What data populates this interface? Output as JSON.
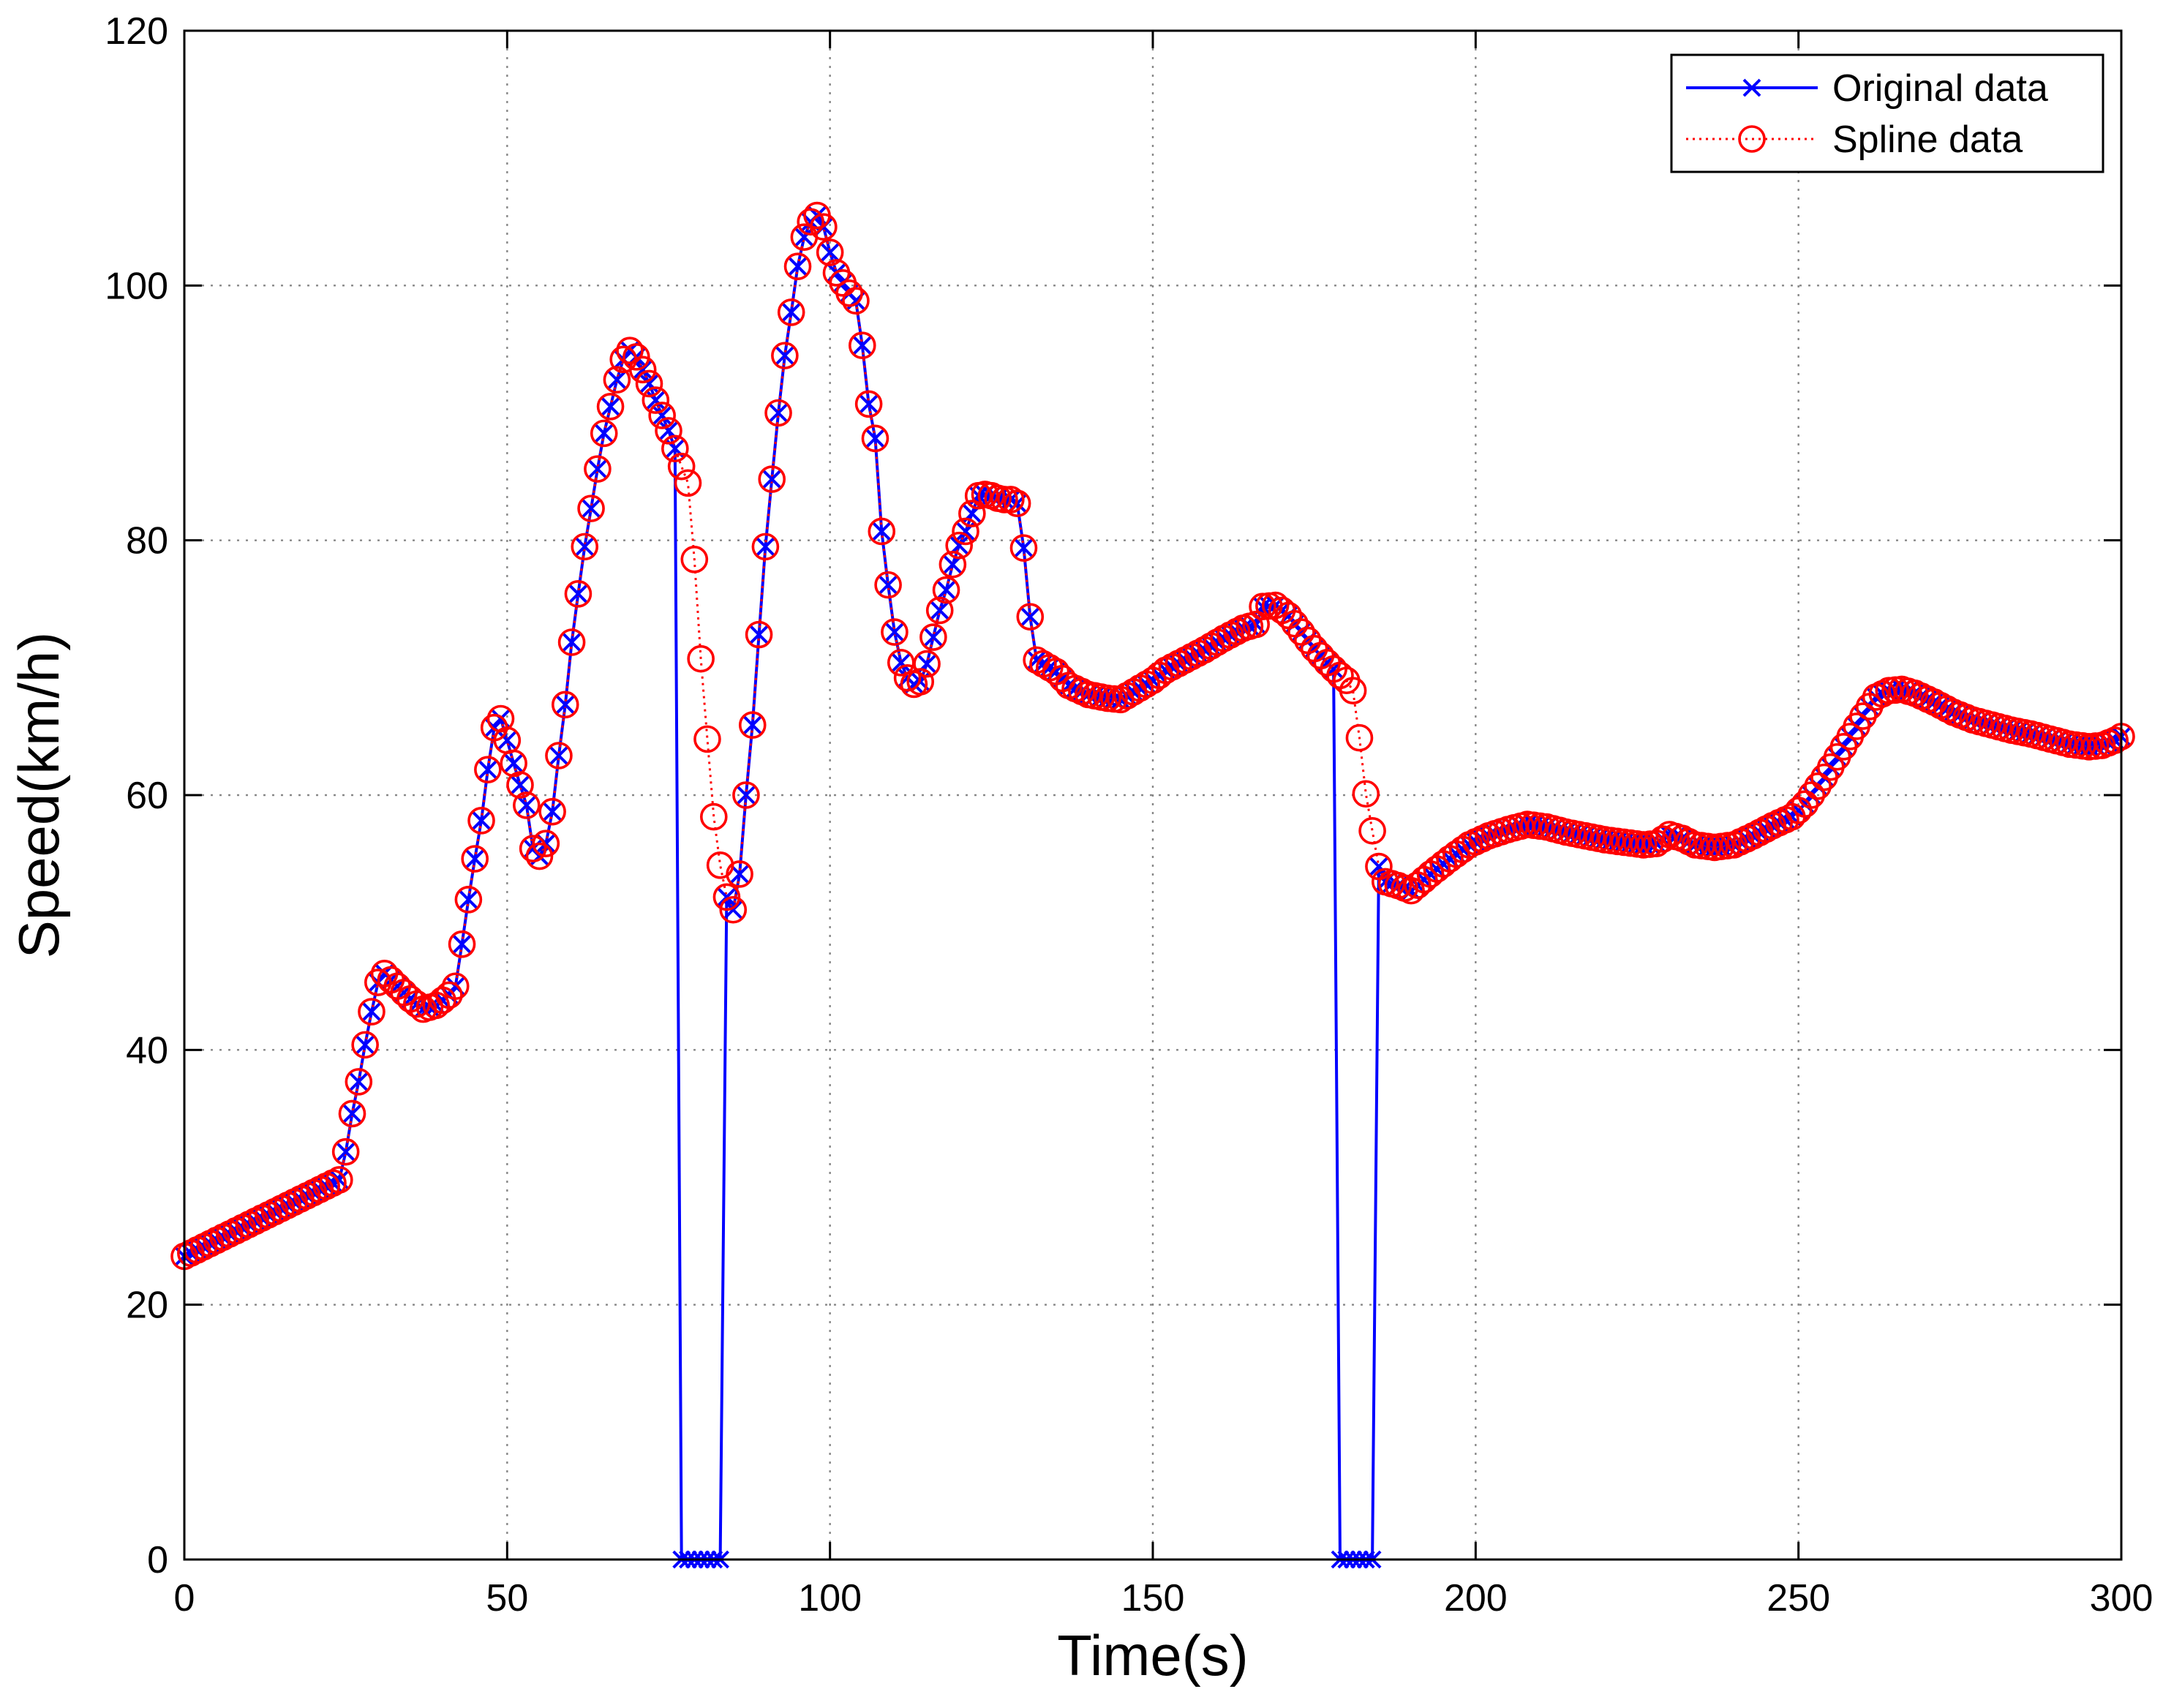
{
  "chart_data": {
    "type": "line",
    "title": "",
    "xlabel": "Time(s)",
    "ylabel": "Speed(km/h)",
    "xlim": [
      0,
      300
    ],
    "ylim": [
      0,
      120
    ],
    "x_ticks": [
      0,
      50,
      100,
      150,
      200,
      250,
      300
    ],
    "y_ticks": [
      0,
      20,
      40,
      60,
      80,
      100,
      120
    ],
    "grid": true,
    "legend_position": "top-right",
    "anchors": [
      [
        0,
        23.8
      ],
      [
        24,
        29.8
      ],
      [
        25,
        32
      ],
      [
        26,
        35
      ],
      [
        27,
        37.5
      ],
      [
        28,
        40.4
      ],
      [
        29,
        43
      ],
      [
        30,
        45.3
      ],
      [
        31,
        46
      ],
      [
        33,
        45
      ],
      [
        35,
        44
      ],
      [
        37,
        43.2
      ],
      [
        39,
        43.5
      ],
      [
        41,
        44.3
      ],
      [
        42,
        45
      ],
      [
        43,
        48.3
      ],
      [
        44,
        51.8
      ],
      [
        45,
        55
      ],
      [
        46,
        58
      ],
      [
        47,
        62
      ],
      [
        48,
        65.3
      ],
      [
        49,
        66
      ],
      [
        50,
        64.3
      ],
      [
        51,
        62.5
      ],
      [
        52,
        60.8
      ],
      [
        53,
        59.2
      ],
      [
        54,
        55.8
      ],
      [
        55,
        55.2
      ],
      [
        56,
        56.2
      ],
      [
        57,
        58.7
      ],
      [
        58,
        63.1
      ],
      [
        59,
        67.1
      ],
      [
        60,
        72
      ],
      [
        61,
        75.8
      ],
      [
        62,
        79.5
      ],
      [
        63,
        82.5
      ],
      [
        64,
        85.6
      ],
      [
        65,
        88.4
      ],
      [
        66,
        90.5
      ],
      [
        67,
        92.6
      ],
      [
        68,
        94.2
      ],
      [
        69,
        94.9
      ],
      [
        70,
        94.4
      ],
      [
        71,
        93.4
      ],
      [
        72,
        92.3
      ],
      [
        73,
        91
      ],
      [
        74,
        89.8
      ],
      [
        75,
        88.6
      ],
      [
        76,
        87.2
      ],
      [
        77,
        85.8
      ],
      [
        78,
        84.5
      ],
      [
        79,
        78.5
      ],
      [
        80,
        70.7
      ],
      [
        81,
        64.4
      ],
      [
        82,
        58.3
      ],
      [
        83,
        54.5
      ],
      [
        84,
        52
      ],
      [
        85,
        51
      ],
      [
        86,
        53.8
      ],
      [
        87,
        60
      ],
      [
        88,
        65.5
      ],
      [
        89,
        72.6
      ],
      [
        90,
        79.5
      ],
      [
        91,
        84.8
      ],
      [
        92,
        90
      ],
      [
        93,
        94.5
      ],
      [
        94,
        97.9
      ],
      [
        95,
        101.5
      ],
      [
        96,
        103.8
      ],
      [
        97,
        105
      ],
      [
        98,
        105.5
      ],
      [
        99,
        104.6
      ],
      [
        100,
        102.6
      ],
      [
        101,
        101
      ],
      [
        102,
        100.2
      ],
      [
        103,
        99.4
      ],
      [
        104,
        98.8
      ],
      [
        105,
        95.3
      ],
      [
        106,
        90.7
      ],
      [
        107,
        88
      ],
      [
        108,
        80.7
      ],
      [
        109,
        76.5
      ],
      [
        110,
        72.8
      ],
      [
        111,
        70.4
      ],
      [
        112,
        69.2
      ],
      [
        113,
        68.7
      ],
      [
        114,
        68.9
      ],
      [
        115,
        70.3
      ],
      [
        116,
        72.4
      ],
      [
        117,
        74.5
      ],
      [
        118,
        76.1
      ],
      [
        119,
        78.1
      ],
      [
        120,
        79.6
      ],
      [
        121,
        80.7
      ],
      [
        122,
        82.1
      ],
      [
        123,
        83.5
      ],
      [
        124,
        83.6
      ],
      [
        125,
        83.5
      ],
      [
        126,
        83.3
      ],
      [
        127,
        83.2
      ],
      [
        128,
        83.2
      ],
      [
        129,
        82.9
      ],
      [
        130,
        79.4
      ],
      [
        131,
        74
      ],
      [
        132,
        70.6
      ],
      [
        135,
        69.7
      ],
      [
        137,
        68.6
      ],
      [
        140,
        67.9
      ],
      [
        143,
        67.6
      ],
      [
        145,
        67.5
      ],
      [
        147,
        68.1
      ],
      [
        150,
        69
      ],
      [
        152,
        69.8
      ],
      [
        155,
        70.6
      ],
      [
        158,
        71.4
      ],
      [
        161,
        72.3
      ],
      [
        164,
        73.1
      ],
      [
        166,
        73.4
      ],
      [
        167,
        74.8
      ],
      [
        169,
        74.9
      ],
      [
        171,
        74.1
      ],
      [
        173,
        72.8
      ],
      [
        175,
        71.5
      ],
      [
        177,
        70.4
      ],
      [
        179,
        69.4
      ],
      [
        180,
        69
      ],
      [
        181,
        68.2
      ],
      [
        182,
        64.5
      ],
      [
        183,
        60.1
      ],
      [
        184,
        57.2
      ],
      [
        185,
        54.4
      ],
      [
        186,
        53.2
      ],
      [
        188,
        52.9
      ],
      [
        190,
        52.5
      ],
      [
        193,
        53.8
      ],
      [
        196,
        55
      ],
      [
        199,
        56.1
      ],
      [
        202,
        56.8
      ],
      [
        205,
        57.3
      ],
      [
        208,
        57.7
      ],
      [
        211,
        57.5
      ],
      [
        214,
        57.1
      ],
      [
        217,
        56.8
      ],
      [
        220,
        56.5
      ],
      [
        223,
        56.3
      ],
      [
        226,
        56.1
      ],
      [
        228,
        56.2
      ],
      [
        230,
        56.9
      ],
      [
        232,
        56.6
      ],
      [
        234,
        56.1
      ],
      [
        237,
        55.9
      ],
      [
        240,
        56.1
      ],
      [
        243,
        56.8
      ],
      [
        246,
        57.6
      ],
      [
        249,
        58.3
      ],
      [
        251,
        59.3
      ],
      [
        254,
        61.4
      ],
      [
        257,
        63.8
      ],
      [
        260,
        66.2
      ],
      [
        262,
        67.7
      ],
      [
        264,
        68.2
      ],
      [
        266,
        68.3
      ],
      [
        268,
        68
      ],
      [
        271,
        67.3
      ],
      [
        274,
        66.5
      ],
      [
        277,
        65.9
      ],
      [
        280,
        65.5
      ],
      [
        283,
        65.1
      ],
      [
        286,
        64.8
      ],
      [
        289,
        64.4
      ],
      [
        292,
        64
      ],
      [
        295,
        63.8
      ],
      [
        297,
        63.9
      ],
      [
        299,
        64.3
      ],
      [
        300,
        64.6
      ]
    ],
    "series": [
      {
        "name": "Original data",
        "color": "#0000ff",
        "line_style": "solid",
        "marker": "x",
        "missing_segments": [
          [
            77,
            83
          ],
          [
            179,
            184
          ]
        ],
        "missing_value": 0
      },
      {
        "name": "Spline data",
        "color": "#ff0000",
        "line_style": "dotted",
        "marker": "o"
      }
    ]
  }
}
